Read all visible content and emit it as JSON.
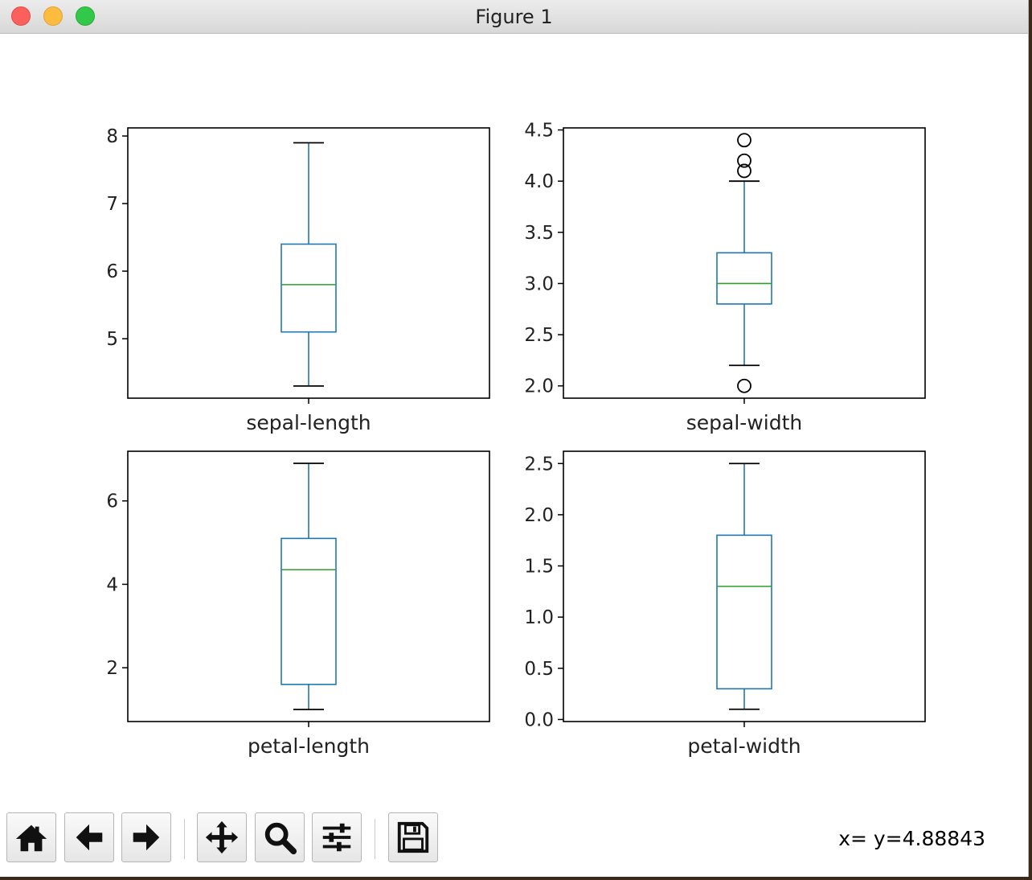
{
  "window": {
    "title": "Figure 1"
  },
  "chart_data": [
    {
      "type": "box",
      "title": "",
      "xlabel": "sepal-length",
      "ylabel": "",
      "ylim": [
        4.12,
        8.12
      ],
      "yticks": [
        5,
        6,
        7,
        8
      ],
      "ytick_labels": [
        "5",
        "6",
        "7",
        "8"
      ],
      "stats": {
        "whisker_low": 4.3,
        "q1": 5.1,
        "median": 5.8,
        "q3": 6.4,
        "whisker_high": 7.9
      },
      "fliers": []
    },
    {
      "type": "box",
      "title": "",
      "xlabel": "sepal-width",
      "ylabel": "",
      "ylim": [
        1.88,
        4.52
      ],
      "yticks": [
        2.0,
        2.5,
        3.0,
        3.5,
        4.0,
        4.5
      ],
      "ytick_labels": [
        "2.0",
        "2.5",
        "3.0",
        "3.5",
        "4.0",
        "4.5"
      ],
      "stats": {
        "whisker_low": 2.2,
        "q1": 2.8,
        "median": 3.0,
        "q3": 3.3,
        "whisker_high": 4.0
      },
      "fliers": [
        4.4,
        4.2,
        4.1,
        2.0
      ]
    },
    {
      "type": "box",
      "title": "",
      "xlabel": "petal-length",
      "ylabel": "",
      "ylim": [
        0.71,
        7.19
      ],
      "yticks": [
        2,
        4,
        6
      ],
      "ytick_labels": [
        "2",
        "4",
        "6"
      ],
      "stats": {
        "whisker_low": 1.0,
        "q1": 1.6,
        "median": 4.35,
        "q3": 5.1,
        "whisker_high": 6.9
      },
      "fliers": []
    },
    {
      "type": "box",
      "title": "",
      "xlabel": "petal-width",
      "ylabel": "",
      "ylim": [
        -0.02,
        2.62
      ],
      "yticks": [
        0.0,
        0.5,
        1.0,
        1.5,
        2.0,
        2.5
      ],
      "ytick_labels": [
        "0.0",
        "0.5",
        "1.0",
        "1.5",
        "2.0",
        "2.5"
      ],
      "stats": {
        "whisker_low": 0.1,
        "q1": 0.3,
        "median": 1.3,
        "q3": 1.8,
        "whisker_high": 2.5
      },
      "fliers": []
    }
  ],
  "colors": {
    "box": "#1f77b4",
    "median": "#2ca02c",
    "axes": "#000000"
  },
  "toolbar": {
    "buttons": [
      {
        "name": "home-button",
        "icon": "home-icon"
      },
      {
        "name": "back-button",
        "icon": "back-arrow-icon"
      },
      {
        "name": "forward-button",
        "icon": "forward-arrow-icon"
      },
      {
        "name": "pan-button",
        "icon": "move-icon"
      },
      {
        "name": "zoom-button",
        "icon": "magnifier-icon"
      },
      {
        "name": "configure-subplots-button",
        "icon": "sliders-icon"
      },
      {
        "name": "save-button",
        "icon": "floppy-disk-icon"
      }
    ],
    "coords": "x= y=4.88843"
  }
}
